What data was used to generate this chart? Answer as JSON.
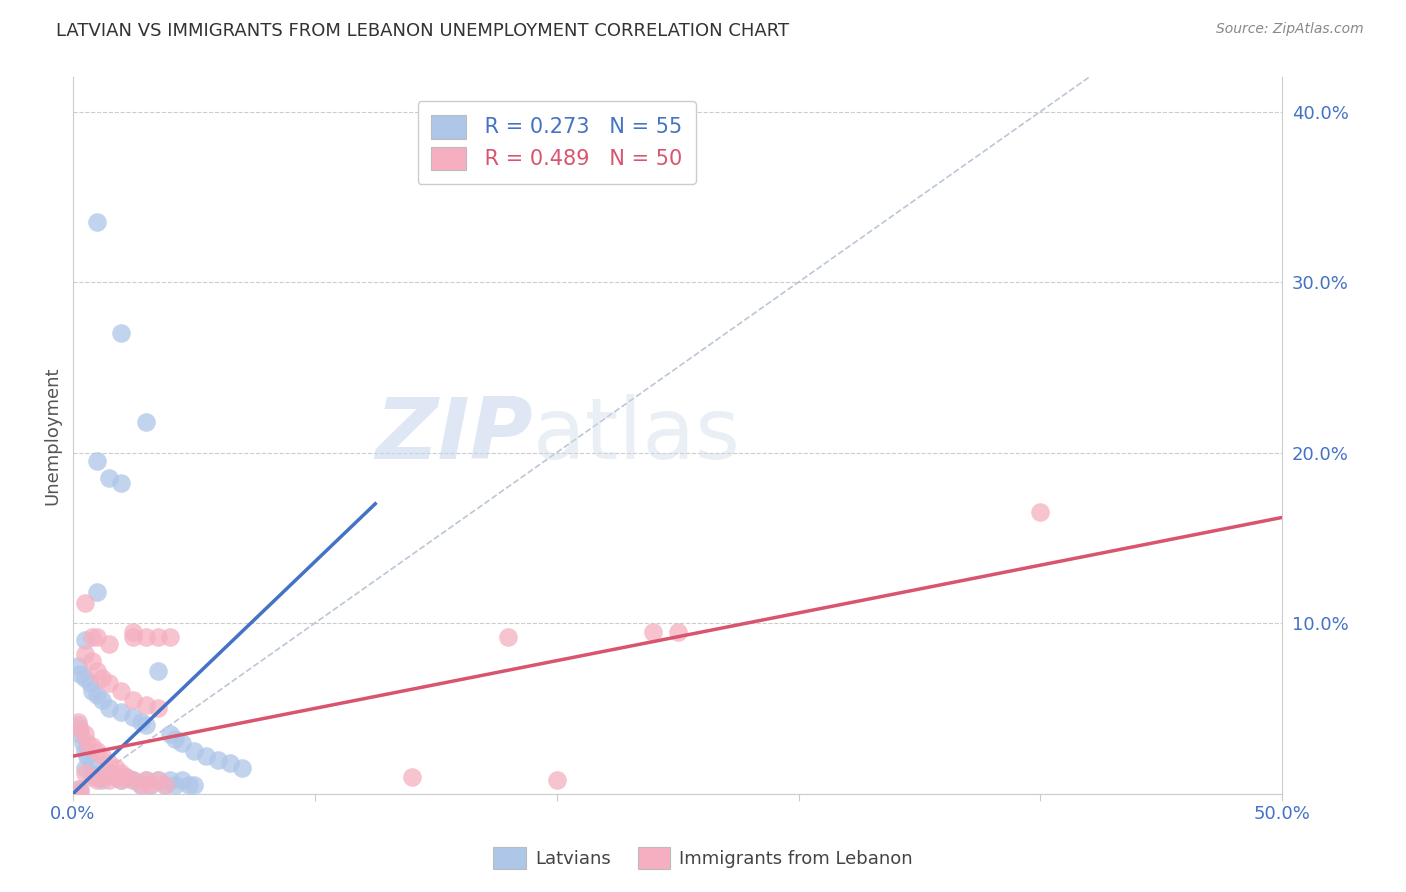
{
  "title": "LATVIAN VS IMMIGRANTS FROM LEBANON UNEMPLOYMENT CORRELATION CHART",
  "source": "Source: ZipAtlas.com",
  "ylabel": "Unemployment",
  "legend_blue_r": "R = 0.273",
  "legend_blue_n": "N = 55",
  "legend_pink_r": "R = 0.489",
  "legend_pink_n": "N = 50",
  "legend_label1": "Latvians",
  "legend_label2": "Immigrants from Lebanon",
  "blue_color": "#aec6e8",
  "pink_color": "#f5afc0",
  "blue_line_color": "#4472c4",
  "pink_line_color": "#d9546e",
  "dashed_line_color": "#aab8cc",
  "watermark_zip": "ZIP",
  "watermark_atlas": "atlas",
  "blue_dots": [
    [
      0.01,
      0.335
    ],
    [
      0.02,
      0.27
    ],
    [
      0.03,
      0.218
    ],
    [
      0.01,
      0.195
    ],
    [
      0.015,
      0.185
    ],
    [
      0.02,
      0.182
    ],
    [
      0.01,
      0.118
    ],
    [
      0.005,
      0.09
    ],
    [
      0.002,
      0.075
    ],
    [
      0.003,
      0.07
    ],
    [
      0.005,
      0.068
    ],
    [
      0.007,
      0.065
    ],
    [
      0.008,
      0.06
    ],
    [
      0.01,
      0.058
    ],
    [
      0.012,
      0.055
    ],
    [
      0.015,
      0.05
    ],
    [
      0.02,
      0.048
    ],
    [
      0.025,
      0.045
    ],
    [
      0.028,
      0.042
    ],
    [
      0.03,
      0.04
    ],
    [
      0.035,
      0.072
    ],
    [
      0.04,
      0.035
    ],
    [
      0.042,
      0.032
    ],
    [
      0.045,
      0.03
    ],
    [
      0.05,
      0.025
    ],
    [
      0.055,
      0.022
    ],
    [
      0.06,
      0.02
    ],
    [
      0.065,
      0.018
    ],
    [
      0.07,
      0.015
    ],
    [
      0.005,
      0.015
    ],
    [
      0.008,
      0.012
    ],
    [
      0.01,
      0.01
    ],
    [
      0.012,
      0.008
    ],
    [
      0.015,
      0.012
    ],
    [
      0.018,
      0.01
    ],
    [
      0.02,
      0.008
    ],
    [
      0.022,
      0.01
    ],
    [
      0.025,
      0.008
    ],
    [
      0.028,
      0.005
    ],
    [
      0.03,
      0.008
    ],
    [
      0.032,
      0.005
    ],
    [
      0.035,
      0.008
    ],
    [
      0.038,
      0.005
    ],
    [
      0.04,
      0.008
    ],
    [
      0.042,
      0.005
    ],
    [
      0.045,
      0.008
    ],
    [
      0.048,
      0.005
    ],
    [
      0.05,
      0.005
    ],
    [
      0.002,
      0.04
    ],
    [
      0.003,
      0.035
    ],
    [
      0.004,
      0.03
    ],
    [
      0.005,
      0.025
    ],
    [
      0.006,
      0.022
    ],
    [
      0.008,
      0.018
    ],
    [
      0.003,
      0.003
    ]
  ],
  "pink_dots": [
    [
      0.4,
      0.165
    ],
    [
      0.005,
      0.112
    ],
    [
      0.008,
      0.092
    ],
    [
      0.01,
      0.092
    ],
    [
      0.025,
      0.095
    ],
    [
      0.03,
      0.092
    ],
    [
      0.035,
      0.092
    ],
    [
      0.04,
      0.092
    ],
    [
      0.025,
      0.092
    ],
    [
      0.015,
      0.088
    ],
    [
      0.005,
      0.082
    ],
    [
      0.008,
      0.078
    ],
    [
      0.01,
      0.072
    ],
    [
      0.012,
      0.068
    ],
    [
      0.015,
      0.065
    ],
    [
      0.02,
      0.06
    ],
    [
      0.025,
      0.055
    ],
    [
      0.03,
      0.052
    ],
    [
      0.035,
      0.05
    ],
    [
      0.24,
      0.095
    ],
    [
      0.25,
      0.095
    ],
    [
      0.18,
      0.092
    ],
    [
      0.2,
      0.008
    ],
    [
      0.14,
      0.01
    ],
    [
      0.002,
      0.042
    ],
    [
      0.003,
      0.038
    ],
    [
      0.005,
      0.035
    ],
    [
      0.006,
      0.03
    ],
    [
      0.008,
      0.028
    ],
    [
      0.01,
      0.025
    ],
    [
      0.012,
      0.022
    ],
    [
      0.015,
      0.018
    ],
    [
      0.018,
      0.015
    ],
    [
      0.02,
      0.012
    ],
    [
      0.005,
      0.012
    ],
    [
      0.008,
      0.01
    ],
    [
      0.01,
      0.008
    ],
    [
      0.012,
      0.01
    ],
    [
      0.015,
      0.008
    ],
    [
      0.018,
      0.01
    ],
    [
      0.02,
      0.008
    ],
    [
      0.022,
      0.01
    ],
    [
      0.025,
      0.008
    ],
    [
      0.028,
      0.005
    ],
    [
      0.03,
      0.008
    ],
    [
      0.032,
      0.005
    ],
    [
      0.035,
      0.008
    ],
    [
      0.038,
      0.005
    ],
    [
      0.002,
      0.003
    ],
    [
      0.003,
      0.001
    ]
  ],
  "xlim": [
    0.0,
    0.5
  ],
  "ylim": [
    0.0,
    0.42
  ],
  "x_ticks": [
    0.0,
    0.1,
    0.2,
    0.3,
    0.4,
    0.5
  ],
  "x_tick_labels": [
    "0.0%",
    "",
    "",
    "",
    "",
    "50.0%"
  ],
  "y_ticks": [
    0.0,
    0.1,
    0.2,
    0.3,
    0.4
  ],
  "y_tick_labels_right": [
    "",
    "10.0%",
    "20.0%",
    "30.0%",
    "40.0%"
  ],
  "blue_line": [
    [
      0.0,
      0.0
    ],
    [
      0.125,
      0.17
    ]
  ],
  "pink_line": [
    [
      0.0,
      0.022
    ],
    [
      0.5,
      0.162
    ]
  ],
  "dashed_line": [
    [
      0.0,
      0.0
    ],
    [
      0.42,
      0.42
    ]
  ]
}
